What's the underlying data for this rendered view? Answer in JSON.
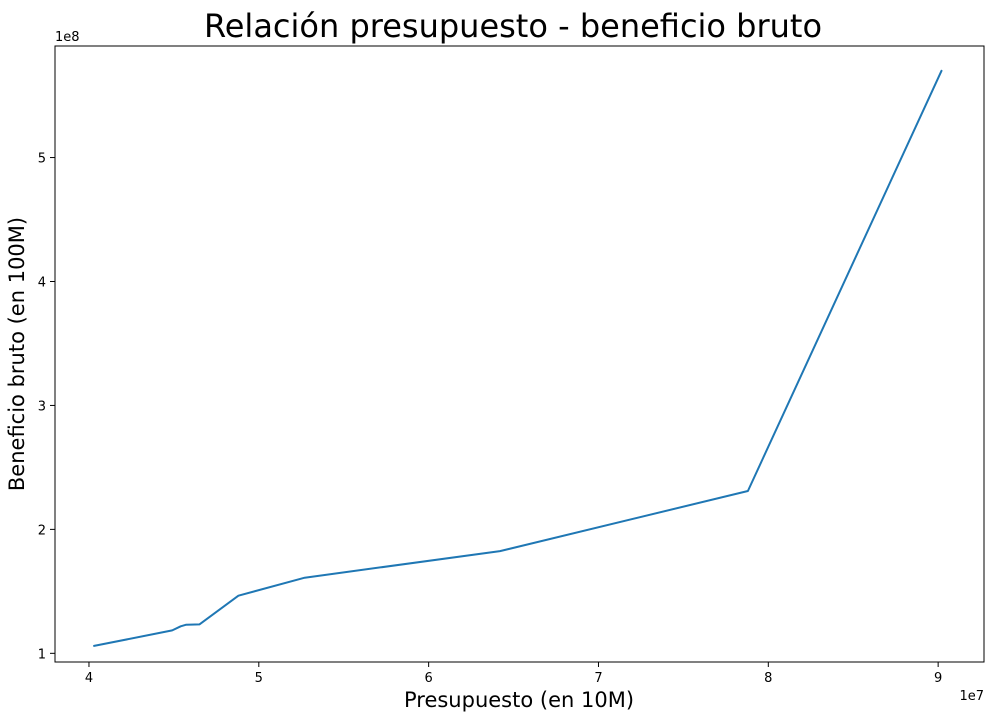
{
  "chart_data": {
    "type": "line",
    "title": "Relación presupuesto - beneficio bruto",
    "xlabel": "Presupuesto (en 10M)",
    "ylabel": "Beneficio bruto  (en 100M)",
    "x_offset_text": "1e7",
    "y_offset_text": "1e8",
    "xlim": [
      38000000,
      92700000
    ],
    "ylim": [
      93000000,
      590000000
    ],
    "x_ticks": [
      40000000,
      50000000,
      60000000,
      70000000,
      80000000,
      90000000
    ],
    "x_tick_labels": [
      "4",
      "5",
      "6",
      "7",
      "8",
      "9"
    ],
    "y_ticks": [
      100000000,
      200000000,
      300000000,
      400000000,
      500000000
    ],
    "y_tick_labels": [
      "1",
      "2",
      "3",
      "4",
      "5"
    ],
    "grid": false,
    "series": [
      {
        "color": "#1f77b4",
        "x": [
          40300000,
          44900000,
          45400000,
          45700000,
          46000000,
          46500000,
          48800000,
          52700000,
          64200000,
          78800000,
          90200000
        ],
        "y": [
          106000000,
          118500000,
          121800000,
          123000000,
          123200000,
          123300000,
          146500000,
          161000000,
          182500000,
          231000000,
          570000000
        ]
      }
    ]
  }
}
